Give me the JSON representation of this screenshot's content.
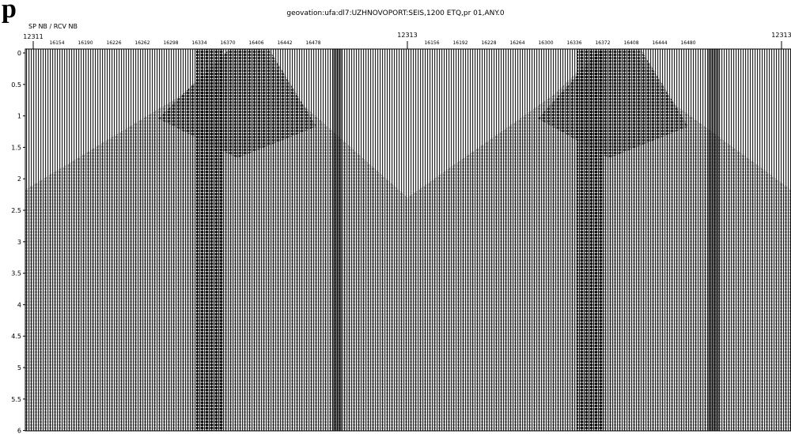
{
  "header": {
    "fragment": "p",
    "title": "geovation:ufa:dl7:UZHNOVOPORT:SEIS,1200 ETQ,pr 01,ANY.0"
  },
  "axis": {
    "label": "SP NB  / RCV NB",
    "shots": [
      "12311",
      "12313",
      "12313"
    ],
    "receivers": [
      [
        "16154",
        "16190",
        "16226",
        "16262",
        "16298",
        "16334",
        "16370",
        "16406",
        "16442",
        "16478"
      ],
      [
        "16156",
        "16192",
        "16228",
        "16264",
        "16300",
        "16336",
        "16372",
        "16408",
        "16444",
        "16480"
      ]
    ],
    "times": [
      "0",
      "0.5",
      "1",
      "1.5",
      "2",
      "2.5",
      "3",
      "3.5",
      "4",
      "4.5",
      "5",
      "5.5",
      "6"
    ]
  }
}
